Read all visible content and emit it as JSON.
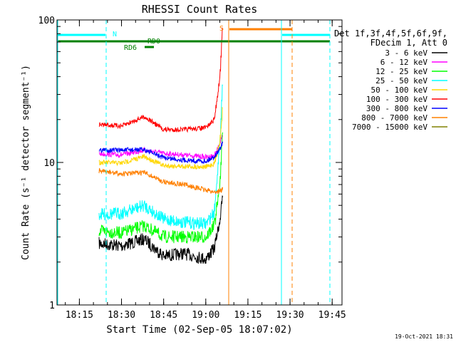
{
  "chart_data": {
    "type": "line",
    "title": "RHESSI Count Rates",
    "xlabel": "Start Time (02-Sep-05 18:07:02)",
    "ylabel": "Count Rate (s⁻¹ detector segment⁻¹)",
    "yscale": "log",
    "ylim": [
      1,
      100
    ],
    "xlim": [
      "18:07:02",
      "19:48:30"
    ],
    "x_ticks": [
      "18:15",
      "18:30",
      "18:45",
      "19:00",
      "19:15",
      "19:30",
      "19:45"
    ],
    "y_ticks": [
      "1",
      "10",
      "100"
    ],
    "grid": false,
    "legend_position": "right",
    "legend_header": [
      "Det 1f,3f,4f,5f,6f,9f,",
      "FDecim 1, Att 0"
    ],
    "series": [
      {
        "name": "3 - 6 keV",
        "color": "#000000",
        "x": [
          "18:22",
          "18:30",
          "18:38",
          "18:45",
          "18:52",
          "19:00",
          "19:03",
          "19:05",
          "19:06"
        ],
        "values": [
          2.7,
          2.6,
          2.9,
          2.2,
          2.3,
          2.1,
          2.5,
          4.0,
          6.0
        ]
      },
      {
        "name": "6 - 12 keV",
        "color": "#ff00ff",
        "x": [
          "18:22",
          "18:30",
          "18:38",
          "18:45",
          "18:52",
          "19:00",
          "19:03",
          "19:05",
          "19:06"
        ],
        "values": [
          11.5,
          11.3,
          12.2,
          11.6,
          11.3,
          10.9,
          11.2,
          13.5,
          16.0
        ]
      },
      {
        "name": "12 - 25 keV",
        "color": "#00ff00",
        "x": [
          "18:22",
          "18:30",
          "18:38",
          "18:45",
          "18:52",
          "19:00",
          "19:03",
          "19:05",
          "19:06"
        ],
        "values": [
          3.3,
          3.2,
          3.6,
          3.0,
          3.0,
          3.0,
          3.6,
          7.0,
          18.0
        ]
      },
      {
        "name": "25 - 50 keV",
        "color": "#00ffff",
        "x": [
          "18:22",
          "18:30",
          "18:38",
          "18:45",
          "18:52",
          "19:00",
          "19:03",
          "19:05",
          "19:06"
        ],
        "values": [
          4.3,
          4.4,
          5.0,
          4.0,
          3.8,
          3.7,
          4.5,
          14.0,
          40.0
        ]
      },
      {
        "name": "50 - 100 keV",
        "color": "#ffd700",
        "x": [
          "18:22",
          "18:30",
          "18:38",
          "18:45",
          "18:52",
          "19:00",
          "19:03",
          "19:05",
          "19:06"
        ],
        "values": [
          10.0,
          9.9,
          11.0,
          9.5,
          9.4,
          9.3,
          9.8,
          14.0,
          25.0
        ]
      },
      {
        "name": "100 - 300 keV",
        "color": "#ff0000",
        "x": [
          "18:22",
          "18:30",
          "18:38",
          "18:45",
          "18:52",
          "19:00",
          "19:03",
          "19:05",
          "19:06"
        ],
        "values": [
          18.5,
          18.0,
          21.0,
          17.0,
          17.0,
          17.5,
          20.0,
          40.0,
          100.0
        ]
      },
      {
        "name": "300 - 800 keV",
        "color": "#0000ff",
        "x": [
          "18:22",
          "18:30",
          "18:38",
          "18:45",
          "18:52",
          "19:00",
          "19:03",
          "19:05",
          "19:06"
        ],
        "values": [
          12.2,
          12.2,
          12.3,
          10.8,
          10.4,
          10.2,
          11.0,
          12.5,
          14.0
        ]
      },
      {
        "name": "800 - 7000 keV",
        "color": "#ff8000",
        "x": [
          "18:22",
          "18:30",
          "18:38",
          "18:45",
          "18:52",
          "19:00",
          "19:03",
          "19:05",
          "19:06"
        ],
        "values": [
          8.7,
          8.3,
          8.5,
          7.3,
          7.0,
          6.4,
          6.2,
          6.3,
          6.5
        ]
      },
      {
        "name": "7000 - 15000 keV",
        "color": "#808000",
        "x": [],
        "values": []
      }
    ],
    "annotations": [
      {
        "text": "N",
        "color": "#00ffff"
      },
      {
        "text": "RD6",
        "color": "#008000"
      },
      {
        "text": "RD0",
        "color": "#008000"
      },
      {
        "text": "S",
        "color": "#ff8000"
      }
    ]
  },
  "footer": {
    "timestamp": "19-Oct-2021 18:31"
  }
}
